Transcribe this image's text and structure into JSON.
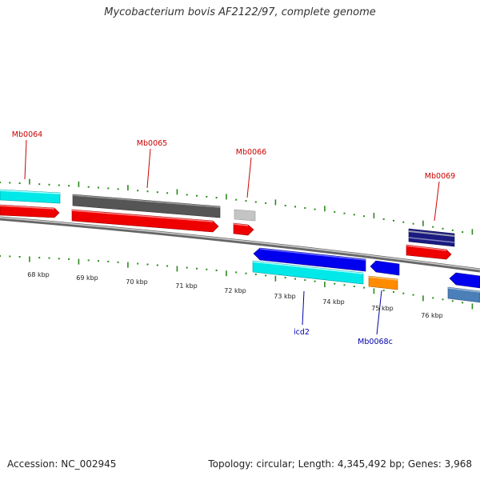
{
  "title": "Mycobacterium bovis AF2122/97, complete genome",
  "footer": {
    "accession": "Accession: NC_002945",
    "summary": "Topology: circular; Length: 4,345,492 bp; Genes: 3,968"
  },
  "colors": {
    "tick": "#2a8a1a",
    "forward_label": "#cc0000",
    "reverse_label": "#0000aa",
    "backbone": "#888888",
    "cyan": "#00ffff",
    "red": "#ff0000",
    "dark_gray": "#555555",
    "light_gray": "#c4c4c4",
    "blue": "#0000ee",
    "orange": "#ff8c00",
    "navy": "#1a1a80",
    "steel_blue": "#4a7fb8"
  },
  "scale_labels": [
    "68 kbp",
    "69 kbp",
    "70 kbp",
    "71 kbp",
    "72 kbp",
    "73 kbp",
    "74 kbp",
    "75 kbp",
    "76 kbp"
  ],
  "labels": {
    "forward": [
      "Mb0064",
      "Mb0065",
      "Mb0066",
      "Mb0069"
    ],
    "reverse": [
      "icd2",
      "Mb0068c"
    ]
  }
}
